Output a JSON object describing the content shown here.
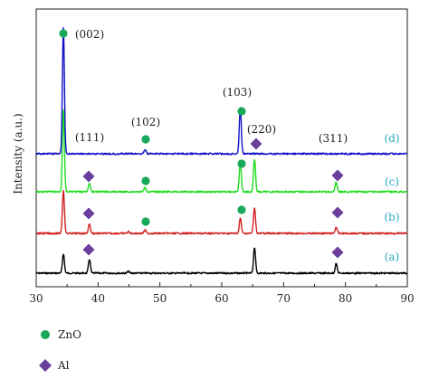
{
  "chart_data": {
    "type": "line",
    "title": "",
    "xlabel": "",
    "ylabel": "Intensity (a.u.)",
    "xlim": [
      30,
      90
    ],
    "xticks": [
      "30",
      "40",
      "50",
      "60",
      "70",
      "80",
      "90"
    ],
    "grid": false,
    "series": [
      {
        "name": "(a)",
        "color": "#000000",
        "peaks": [
          {
            "x": 34.4,
            "h": 0.18
          },
          {
            "x": 38.6,
            "h": 0.13
          },
          {
            "x": 44.9,
            "h": 0.015
          },
          {
            "x": 65.3,
            "h": 0.24
          },
          {
            "x": 78.5,
            "h": 0.09
          }
        ]
      },
      {
        "name": "(b)",
        "color": "#d22020",
        "peaks": [
          {
            "x": 34.4,
            "h": 0.4
          },
          {
            "x": 38.6,
            "h": 0.09
          },
          {
            "x": 44.9,
            "h": 0.015
          },
          {
            "x": 47.6,
            "h": 0.03
          },
          {
            "x": 63.0,
            "h": 0.14
          },
          {
            "x": 65.3,
            "h": 0.24
          },
          {
            "x": 78.5,
            "h": 0.06
          }
        ]
      },
      {
        "name": "(c)",
        "color": "#1edc1e",
        "peaks": [
          {
            "x": 34.4,
            "h": 0.76
          },
          {
            "x": 38.6,
            "h": 0.08
          },
          {
            "x": 47.6,
            "h": 0.04
          },
          {
            "x": 63.0,
            "h": 0.28
          },
          {
            "x": 65.3,
            "h": 0.3
          },
          {
            "x": 78.5,
            "h": 0.09
          }
        ]
      },
      {
        "name": "(d)",
        "color": "#1010c8",
        "peaks": [
          {
            "x": 34.4,
            "h": 1.16
          },
          {
            "x": 47.6,
            "h": 0.04
          },
          {
            "x": 63.0,
            "h": 0.43
          }
        ]
      }
    ],
    "peak_labels": [
      {
        "text": "(002)"
      },
      {
        "text": "(111)"
      },
      {
        "text": "(102)"
      },
      {
        "text": "(103)"
      },
      {
        "text": "(220)"
      },
      {
        "text": "(311)"
      }
    ],
    "legend": {
      "position": "bottom-left",
      "entries": [
        {
          "label": "ZnO",
          "marker": "circle",
          "color": "#1aa85a"
        },
        {
          "label": "Al",
          "marker": "diamond",
          "color": "#6a3e9c"
        }
      ]
    }
  }
}
